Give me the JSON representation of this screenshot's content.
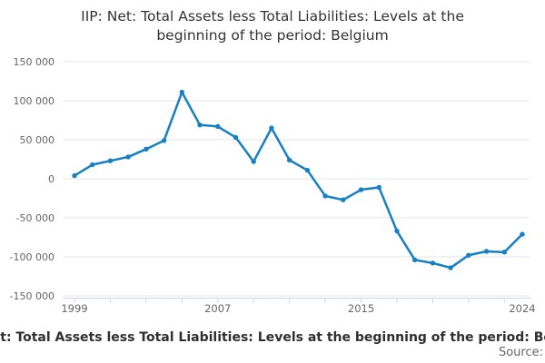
{
  "header": {
    "title_lines": [
      "IIP: Net: Total Assets less Total Liabilities: Levels at the",
      "beginning of the period: Belgium"
    ]
  },
  "chart_data": {
    "type": "line",
    "title": "IIP: Net: Total Assets less Total Liabilities: Levels at the beginning of the period: Belgium",
    "series": [
      {
        "name": "IIP: Net: Total Assets less Total Liabilities: Levels at the beginning of the period: Belgium",
        "values": [
          4000,
          18000,
          23000,
          28000,
          38000,
          49000,
          111000,
          69000,
          67000,
          53000,
          22000,
          65000,
          24000,
          11000,
          -22000,
          -27000,
          -14000,
          -11000,
          -67000,
          -104000,
          -108000,
          -114000,
          -98000,
          -93000,
          -94000,
          -71000
        ]
      }
    ],
    "x": [
      1999,
      2000,
      2001,
      2002,
      2003,
      2004,
      2005,
      2006,
      2007,
      2008,
      2009,
      2010,
      2011,
      2012,
      2013,
      2014,
      2015,
      2016,
      2017,
      2018,
      2019,
      2020,
      2021,
      2022,
      2023,
      2024
    ],
    "xlabel": "",
    "ylabel": "",
    "ylim": [
      -150000,
      150000
    ],
    "grid": "horizontal-only",
    "legend_position": "bottom",
    "yticks": [
      {
        "value": 150000,
        "label": "150 000"
      },
      {
        "value": 100000,
        "label": "100 000"
      },
      {
        "value": 50000,
        "label": "50 000"
      },
      {
        "value": 0,
        "label": "0"
      },
      {
        "value": -50000,
        "label": "-50 000"
      },
      {
        "value": -100000,
        "label": "-100 000"
      },
      {
        "value": -150000,
        "label": "-150 000"
      }
    ],
    "xtick_years": [
      1999,
      2001,
      2003,
      2005,
      2007,
      2009,
      2011,
      2013,
      2015,
      2017,
      2019,
      2021,
      2023
    ],
    "xtick_labels": [
      {
        "year": 1999,
        "label": "1999"
      },
      {
        "year": 2007,
        "label": "2007"
      },
      {
        "year": 2015,
        "label": "2015"
      },
      {
        "year": 2024,
        "label": "2024"
      }
    ],
    "colors": {
      "line": "#1680c4",
      "grid": "#e6e6e6",
      "axis": "#ccd6eb",
      "tick_label": "#666666"
    }
  },
  "footer": {
    "legend": "IIP: Net: Total Assets less Total Liabilities: Levels at the beginning of the period: Belgium",
    "source_label": "Source:"
  }
}
